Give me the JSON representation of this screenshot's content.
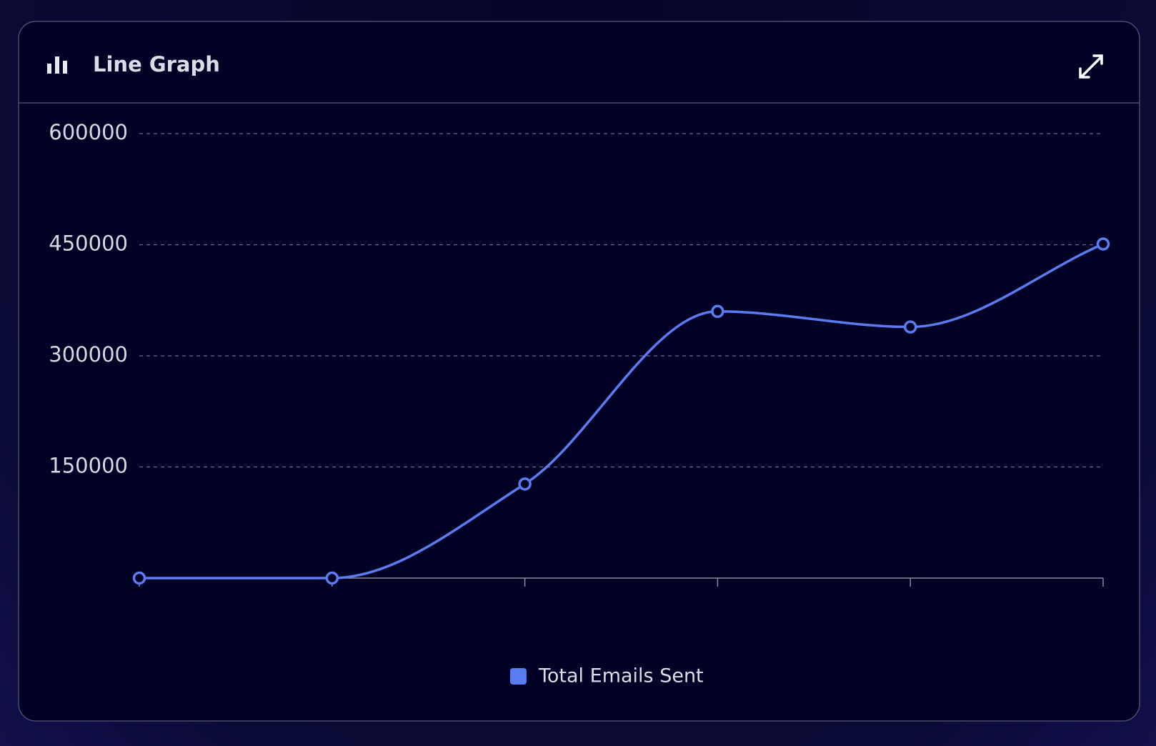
{
  "header": {
    "title": "Line Graph"
  },
  "chart_data": {
    "type": "line",
    "categories": [
      null,
      null,
      null,
      null,
      null,
      null
    ],
    "series": [
      {
        "name": "Total Emails Sent",
        "color": "#5b7cf0",
        "values": [
          0,
          0,
          127000,
          360000,
          339000,
          451000
        ]
      }
    ],
    "ylim": [
      0,
      600000
    ],
    "yticks": [
      150000,
      300000,
      450000,
      600000
    ],
    "grid": true
  }
}
